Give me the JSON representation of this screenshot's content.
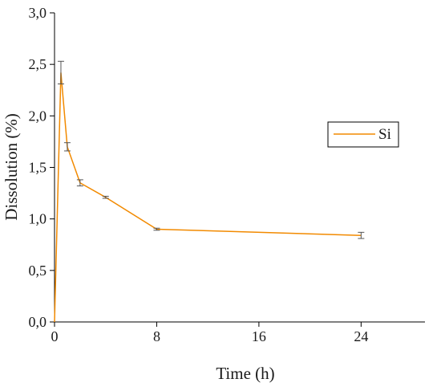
{
  "chart_data": {
    "type": "line",
    "xlabel": "Time (h)",
    "ylabel": "Dissolution (%)",
    "xlim": [
      0,
      29
    ],
    "ylim": [
      0,
      3.0
    ],
    "x_ticks": [
      0,
      8,
      16,
      24
    ],
    "x_tick_labels": [
      "0",
      "8",
      "16",
      "24"
    ],
    "y_ticks": [
      0,
      0.5,
      1.0,
      1.5,
      2.0,
      2.5,
      3.0
    ],
    "y_tick_labels": [
      "0,0",
      "0,5",
      "1,0",
      "1,5",
      "2,0",
      "2,5",
      "3,0"
    ],
    "grid": false,
    "legend_position": "right",
    "colors": {
      "series": "#f28a00",
      "error_bar": "#555555"
    },
    "series": [
      {
        "name": "Si",
        "x": [
          0,
          0.5,
          1,
          2,
          4,
          8,
          24
        ],
        "y": [
          0.0,
          2.42,
          1.7,
          1.35,
          1.21,
          0.9,
          0.84
        ],
        "err": [
          0.0,
          0.11,
          0.04,
          0.03,
          0.01,
          0.01,
          0.03
        ]
      }
    ]
  }
}
